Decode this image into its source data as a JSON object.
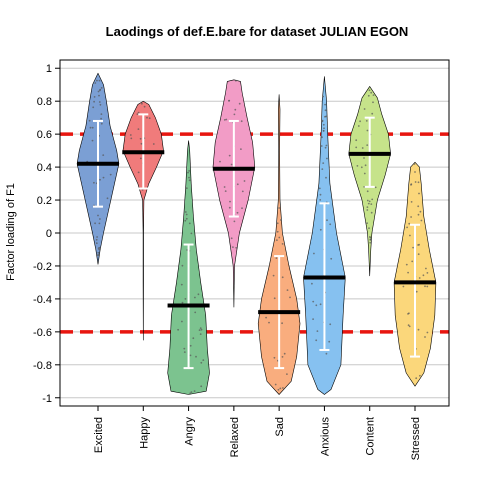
{
  "chart_data": {
    "type": "violin",
    "title": "Laodings of def.E.bare for dataset JULIAN EGON",
    "xlabel": "",
    "ylabel": "Factor loading of F1",
    "ylim": [
      -1.05,
      1.05
    ],
    "yticks": [
      1,
      0.8,
      0.6,
      0.4,
      0.2,
      0,
      -0.2,
      -0.4,
      -0.6,
      -0.8,
      -1
    ],
    "ytick_labels": [
      "1",
      "0.8",
      "0.6",
      "0.4",
      "0.2",
      "0",
      "-0.2",
      "-0.4",
      "-0.6",
      "-0.8",
      "-1"
    ],
    "grid": "horizontal",
    "reference_lines": [
      0.6,
      -0.6
    ],
    "reference_color": "#e8150f",
    "categories": [
      "Excited",
      "Happy",
      "Angry",
      "Relaxed",
      "Sad",
      "Anxious",
      "Content",
      "Stressed"
    ],
    "series": [
      {
        "category": "Excited",
        "color": "#7b9fd4",
        "median": 0.42,
        "min": -0.19,
        "max": 0.97,
        "q1": 0.16,
        "q3": 0.68,
        "profile": [
          [
            -0.19,
            0.0
          ],
          [
            -0.1,
            0.1
          ],
          [
            0.0,
            0.25
          ],
          [
            0.15,
            0.5
          ],
          [
            0.3,
            0.75
          ],
          [
            0.42,
            0.95
          ],
          [
            0.5,
            0.85
          ],
          [
            0.65,
            0.55
          ],
          [
            0.8,
            0.38
          ],
          [
            0.9,
            0.25
          ],
          [
            0.97,
            0.0
          ]
        ]
      },
      {
        "category": "Happy",
        "color": "#f07b7b",
        "median": 0.49,
        "min": -0.65,
        "max": 0.8,
        "q1": 0.27,
        "q3": 0.72,
        "profile": [
          [
            -0.65,
            0.0
          ],
          [
            -0.3,
            0.01
          ],
          [
            0.0,
            0.01
          ],
          [
            0.2,
            0.03
          ],
          [
            0.3,
            0.25
          ],
          [
            0.4,
            0.6
          ],
          [
            0.5,
            0.92
          ],
          [
            0.6,
            0.82
          ],
          [
            0.7,
            0.55
          ],
          [
            0.78,
            0.25
          ],
          [
            0.8,
            0.0
          ]
        ]
      },
      {
        "category": "Angry",
        "color": "#7cc38f",
        "median": -0.44,
        "min": -0.98,
        "max": 0.56,
        "q1": -0.82,
        "q3": -0.07,
        "profile": [
          [
            -0.98,
            0.0
          ],
          [
            -0.96,
            0.8
          ],
          [
            -0.85,
            0.95
          ],
          [
            -0.7,
            0.85
          ],
          [
            -0.5,
            0.78
          ],
          [
            -0.3,
            0.55
          ],
          [
            -0.1,
            0.35
          ],
          [
            0.1,
            0.22
          ],
          [
            0.3,
            0.12
          ],
          [
            0.5,
            0.05
          ],
          [
            0.56,
            0.0
          ]
        ]
      },
      {
        "category": "Relaxed",
        "color": "#f29cc6",
        "median": 0.39,
        "min": -0.45,
        "max": 0.93,
        "q1": 0.1,
        "q3": 0.68,
        "profile": [
          [
            -0.45,
            0.0
          ],
          [
            -0.2,
            0.03
          ],
          [
            0.0,
            0.25
          ],
          [
            0.2,
            0.65
          ],
          [
            0.4,
            0.95
          ],
          [
            0.55,
            0.85
          ],
          [
            0.7,
            0.6
          ],
          [
            0.85,
            0.38
          ],
          [
            0.92,
            0.3
          ],
          [
            0.93,
            0.0
          ]
        ]
      },
      {
        "category": "Sad",
        "color": "#f9ad7e",
        "median": -0.48,
        "min": -0.98,
        "max": 0.84,
        "q1": -0.82,
        "q3": -0.14,
        "profile": [
          [
            -0.98,
            0.0
          ],
          [
            -0.9,
            0.55
          ],
          [
            -0.75,
            0.8
          ],
          [
            -0.55,
            0.95
          ],
          [
            -0.4,
            0.8
          ],
          [
            -0.2,
            0.45
          ],
          [
            0.0,
            0.15
          ],
          [
            0.2,
            0.04
          ],
          [
            0.5,
            0.02
          ],
          [
            0.75,
            0.04
          ],
          [
            0.84,
            0.0
          ]
        ]
      },
      {
        "category": "Anxious",
        "color": "#86c1f0",
        "median": -0.27,
        "min": -0.98,
        "max": 0.95,
        "q1": -0.71,
        "q3": 0.18,
        "profile": [
          [
            -0.98,
            0.0
          ],
          [
            -0.95,
            0.3
          ],
          [
            -0.8,
            0.75
          ],
          [
            -0.5,
            0.85
          ],
          [
            -0.27,
            0.95
          ],
          [
            0.0,
            0.55
          ],
          [
            0.3,
            0.25
          ],
          [
            0.6,
            0.15
          ],
          [
            0.8,
            0.1
          ],
          [
            0.95,
            0.0
          ]
        ]
      },
      {
        "category": "Content",
        "color": "#c6e38a",
        "median": 0.48,
        "min": -0.26,
        "max": 0.89,
        "q1": 0.28,
        "q3": 0.7,
        "profile": [
          [
            -0.26,
            0.0
          ],
          [
            -0.1,
            0.05
          ],
          [
            0.0,
            0.1
          ],
          [
            0.2,
            0.35
          ],
          [
            0.35,
            0.7
          ],
          [
            0.48,
            0.95
          ],
          [
            0.6,
            0.85
          ],
          [
            0.72,
            0.55
          ],
          [
            0.82,
            0.35
          ],
          [
            0.89,
            0.0
          ]
        ]
      },
      {
        "category": "Stressed",
        "color": "#fbd77b",
        "median": -0.3,
        "min": -0.93,
        "max": 0.43,
        "q1": -0.75,
        "q3": 0.05,
        "profile": [
          [
            -0.93,
            0.0
          ],
          [
            -0.85,
            0.4
          ],
          [
            -0.7,
            0.7
          ],
          [
            -0.5,
            0.9
          ],
          [
            -0.3,
            0.95
          ],
          [
            -0.1,
            0.65
          ],
          [
            0.1,
            0.4
          ],
          [
            0.3,
            0.28
          ],
          [
            0.4,
            0.2
          ],
          [
            0.43,
            0.0
          ]
        ]
      }
    ]
  }
}
